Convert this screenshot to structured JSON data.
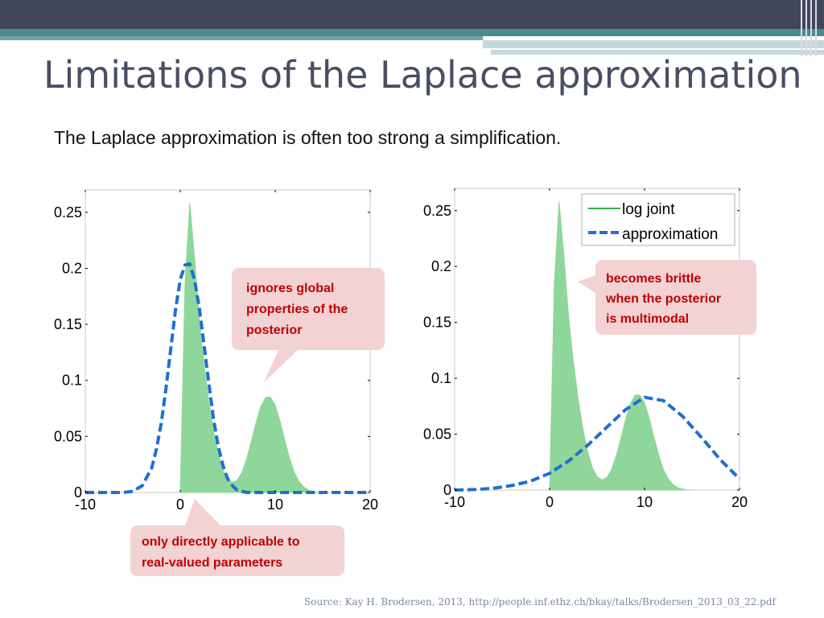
{
  "slide": {
    "title": "Limitations of the Laplace approximation",
    "subtitle": "The Laplace approximation is often too strong a simplification.",
    "source": "Source: Kay H. Brodersen, 2013,  http://people.inf.ethz.ch/bkay/talks/Brodersen_2013_03_22.pdf"
  },
  "colors": {
    "log_joint": "#8fd69a",
    "log_joint_line": "#2eb34a",
    "approximation": "#1f6fd1",
    "callout_bg": "#f2d2d3",
    "callout_text": "#c00000"
  },
  "callouts": {
    "left_top": [
      "ignores global",
      "properties of the",
      "posterior"
    ],
    "left_bottom": [
      "only directly applicable to",
      "real-valued parameters"
    ],
    "right_top": [
      "becomes brittle",
      "when the posterior",
      "is multimodal"
    ]
  },
  "chart_data": [
    {
      "type": "area",
      "xlim": [
        -10,
        20
      ],
      "ylim": [
        0,
        0.27
      ],
      "xticks": [
        -10,
        0,
        10,
        20
      ],
      "yticks": [
        0,
        0.05,
        0.1,
        0.15,
        0.2,
        0.25
      ],
      "xtick_labels": [
        "-10",
        "0",
        "10",
        "20"
      ],
      "ytick_labels": [
        "0",
        "0.05",
        "0.1",
        "0.15",
        "0.2",
        "0.25"
      ],
      "series": [
        {
          "kind": "area",
          "x": [
            0,
            0.5,
            1,
            1.5,
            2,
            2.5,
            3,
            3.5,
            4,
            4.5,
            5,
            5.5,
            6,
            6.5,
            7,
            7.5,
            8,
            8.5,
            9,
            9.5,
            10,
            10.5,
            11,
            11.5,
            12,
            12.5,
            13,
            13.5,
            14,
            14.5,
            15
          ],
          "y": [
            0,
            0.185,
            0.258,
            0.21,
            0.155,
            0.115,
            0.082,
            0.055,
            0.035,
            0.02,
            0.012,
            0.009,
            0.011,
            0.018,
            0.03,
            0.046,
            0.063,
            0.077,
            0.085,
            0.085,
            0.078,
            0.064,
            0.047,
            0.031,
            0.018,
            0.01,
            0.005,
            0.002,
            0.001,
            0,
            0
          ]
        },
        {
          "kind": "line",
          "dashed": true,
          "x": [
            -10,
            -9,
            -8,
            -7,
            -6,
            -5,
            -4,
            -3,
            -2.5,
            -2,
            -1.5,
            -1,
            -0.5,
            0,
            0.5,
            1,
            1.5,
            2,
            2.5,
            3,
            3.5,
            4,
            4.5,
            5,
            5.5,
            6,
            7,
            8,
            9,
            10,
            12,
            14,
            16,
            18,
            20
          ],
          "y": [
            0,
            0,
            0,
            0,
            0,
            0.001,
            0.006,
            0.022,
            0.039,
            0.062,
            0.093,
            0.128,
            0.163,
            0.19,
            0.203,
            0.204,
            0.19,
            0.165,
            0.132,
            0.098,
            0.066,
            0.041,
            0.024,
            0.012,
            0.006,
            0.002,
            0,
            0,
            0,
            0,
            0,
            0,
            0,
            0,
            0
          ]
        }
      ]
    },
    {
      "type": "area",
      "xlim": [
        -10,
        20
      ],
      "ylim": [
        0,
        0.27
      ],
      "xticks": [
        -10,
        0,
        10,
        20
      ],
      "yticks": [
        0,
        0.05,
        0.1,
        0.15,
        0.2,
        0.25
      ],
      "xtick_labels": [
        "-10",
        "0",
        "10",
        "20"
      ],
      "ytick_labels": [
        "0",
        "0.05",
        "0.1",
        "0.15",
        "0.2",
        "0.25"
      ],
      "legend": {
        "position": "top-right",
        "entries": [
          "log joint",
          "approximation"
        ]
      },
      "series": [
        {
          "name": "log joint",
          "kind": "area",
          "x": [
            0,
            0.5,
            1,
            1.5,
            2,
            2.5,
            3,
            3.5,
            4,
            4.5,
            5,
            5.5,
            6,
            6.5,
            7,
            7.5,
            8,
            8.5,
            9,
            9.5,
            10,
            10.5,
            11,
            11.5,
            12,
            12.5,
            13,
            13.5,
            14,
            14.5,
            15
          ],
          "y": [
            0,
            0.185,
            0.258,
            0.21,
            0.155,
            0.115,
            0.082,
            0.055,
            0.035,
            0.02,
            0.012,
            0.009,
            0.011,
            0.018,
            0.03,
            0.046,
            0.063,
            0.077,
            0.085,
            0.085,
            0.078,
            0.064,
            0.047,
            0.031,
            0.018,
            0.01,
            0.005,
            0.002,
            0.001,
            0,
            0
          ]
        },
        {
          "name": "approximation",
          "kind": "line",
          "dashed": true,
          "x": [
            -10,
            -8,
            -6,
            -4,
            -2,
            0,
            2,
            4,
            6,
            8,
            10,
            12,
            14,
            16,
            18,
            20
          ],
          "y": [
            0,
            0.0004,
            0.0015,
            0.004,
            0.008,
            0.015,
            0.026,
            0.04,
            0.056,
            0.072,
            0.083,
            0.08,
            0.066,
            0.047,
            0.027,
            0.01
          ]
        }
      ]
    }
  ]
}
